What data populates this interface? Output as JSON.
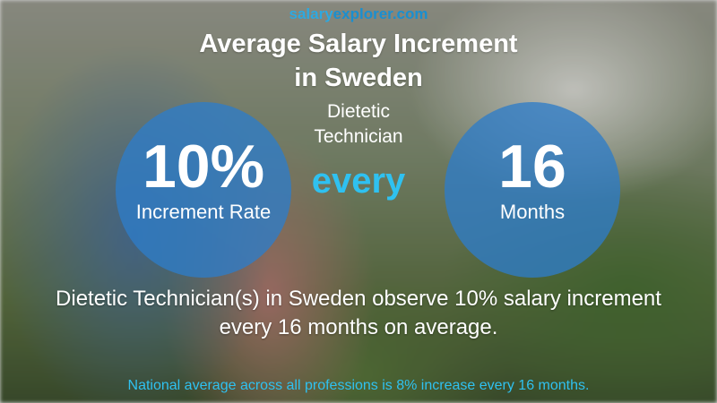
{
  "brand": {
    "part1": "salary",
    "part2": "explorer.com"
  },
  "title": {
    "line1": "Average Salary Increment",
    "line2": "in Sweden"
  },
  "subtitle": {
    "line1": "Dietetic",
    "line2": "Technician"
  },
  "increment": {
    "value": "10%",
    "label": "Increment Rate"
  },
  "connector": "every",
  "period": {
    "value": "16",
    "label": "Months"
  },
  "summary": {
    "line1": "Dietetic Technician(s) in Sweden observe 10% salary increment",
    "line2": "every 16 months on average."
  },
  "national_note": "National average across all professions is 8% increase every 16 months.",
  "colors": {
    "accent": "#2fc1f0",
    "circle": "#2e7cc8"
  }
}
